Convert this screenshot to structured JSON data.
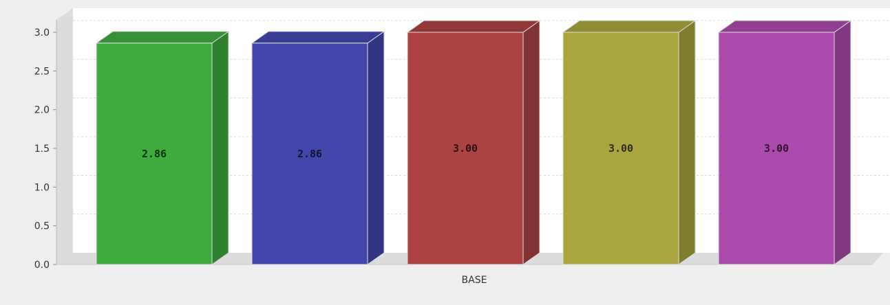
{
  "chart_data": {
    "type": "bar",
    "style": "3d",
    "categories": [
      "BASE"
    ],
    "series": [
      {
        "value": 2.86,
        "label": "2.86",
        "color": "#3faa3f"
      },
      {
        "value": 2.86,
        "label": "2.86",
        "color": "#4246ac"
      },
      {
        "value": 3.0,
        "label": "3.00",
        "color": "#ac4242"
      },
      {
        "value": 3.0,
        "label": "3.00",
        "color": "#aaa63f"
      },
      {
        "value": 3.0,
        "label": "3.00",
        "color": "#aa4aaa"
      }
    ],
    "yticks": [
      "0.0",
      "0.5",
      "1.0",
      "1.5",
      "2.0",
      "2.5",
      "3.0"
    ],
    "ylim": [
      0,
      3.0
    ],
    "grid": true,
    "title": "",
    "xlabel": "",
    "ylabel": ""
  },
  "colors": {
    "background": "#eeeeee",
    "plot_area": "#ffffff",
    "walls": "#dcdcdc",
    "grid": "#d8d8d8"
  }
}
